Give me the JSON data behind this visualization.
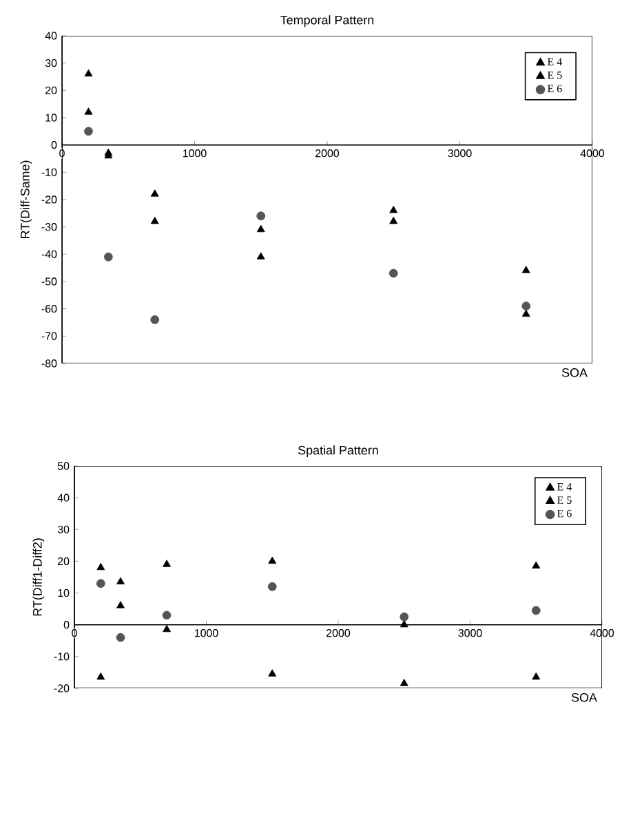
{
  "chart_data": [
    {
      "type": "scatter",
      "title": "Temporal Pattern",
      "xlabel": "SOA",
      "ylabel": "RT(Diff-Same)",
      "xlim": [
        0,
        4000
      ],
      "xticks": [
        0,
        1000,
        2000,
        3000,
        4000
      ],
      "ylim": [
        -80,
        40
      ],
      "yticks": [
        -80,
        -70,
        -60,
        -50,
        -40,
        -30,
        -20,
        -10,
        0,
        10,
        20,
        30,
        40
      ],
      "legend": "top right",
      "grid": false,
      "x": [
        200,
        350,
        700,
        1500,
        2500,
        3500
      ],
      "series": [
        {
          "name": "E 4",
          "color": "#000000",
          "marker": "triangle",
          "values": [
            26,
            -3,
            -18,
            -31,
            -24,
            -46
          ]
        },
        {
          "name": "E 5",
          "color": "#000000",
          "marker": "triangle",
          "values": [
            12,
            -4,
            -28,
            -41,
            -28,
            -62
          ]
        },
        {
          "name": "E 6",
          "color": "#555555",
          "marker": "circle",
          "values": [
            5,
            -41,
            -64,
            -26,
            -47,
            -59
          ]
        }
      ]
    },
    {
      "type": "scatter",
      "title": "Spatial Pattern",
      "xlabel": "SOA",
      "ylabel": "RT(Diff1-Diff2)",
      "xlim": [
        0,
        4000
      ],
      "xticks": [
        0,
        1000,
        2000,
        3000,
        4000
      ],
      "ylim": [
        -20,
        50
      ],
      "yticks": [
        -20,
        -10,
        0,
        10,
        20,
        30,
        40,
        50
      ],
      "legend": "top right",
      "grid": false,
      "x": [
        200,
        350,
        700,
        1500,
        2500,
        3500
      ],
      "series": [
        {
          "name": "E 4",
          "color": "#000000",
          "marker": "triangle",
          "values": [
            18,
            13.5,
            19,
            20,
            0,
            18.5
          ]
        },
        {
          "name": "E 5",
          "color": "#000000",
          "marker": "triangle",
          "values": [
            -16.5,
            6,
            -1.5,
            -15.5,
            -18.5,
            -16.5
          ]
        },
        {
          "name": "E 6",
          "color": "#555555",
          "marker": "circle",
          "values": [
            13,
            -4,
            3,
            12,
            2.5,
            4.5
          ]
        }
      ]
    }
  ]
}
